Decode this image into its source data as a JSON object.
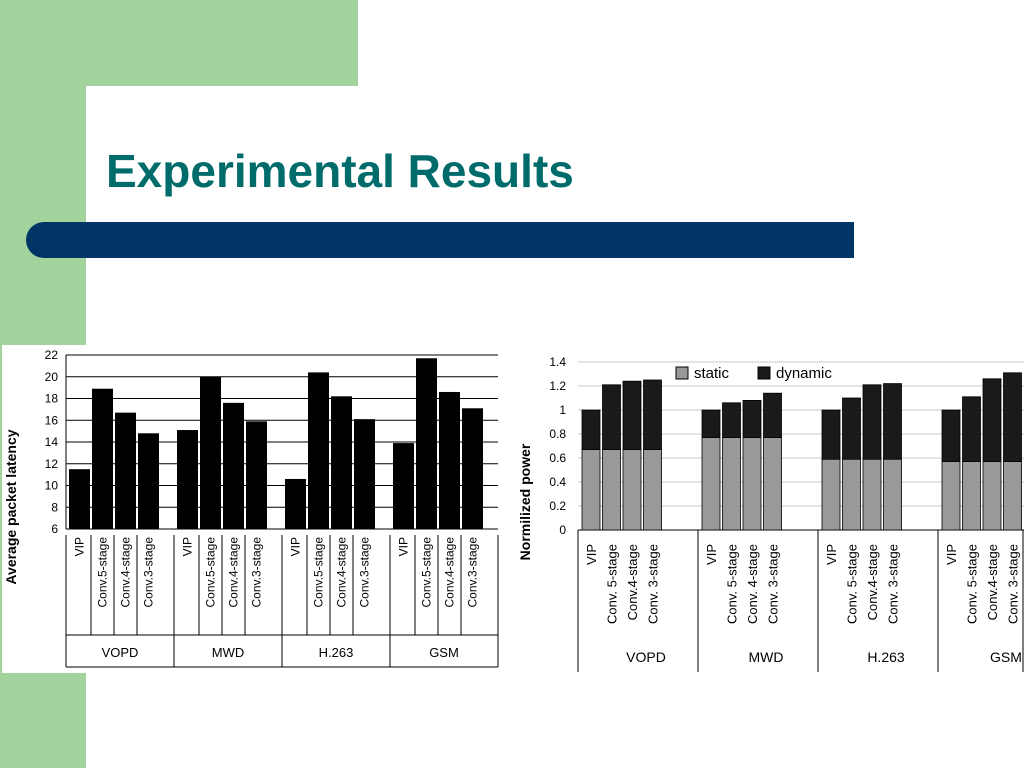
{
  "slide": {
    "title": "Experimental Results",
    "colors": {
      "side_band": "#a3d39c",
      "title_text": "#006b6b",
      "title_bar": "#003366"
    }
  },
  "chart_data": [
    {
      "type": "bar",
      "ylabel": "Average packet latency",
      "ylim": [
        6,
        22
      ],
      "yticks": [
        6,
        8,
        10,
        12,
        14,
        16,
        18,
        20,
        22
      ],
      "grid": true,
      "bar_color": "#000000",
      "groups": [
        {
          "name": "VOPD",
          "categories": [
            "VIP",
            "Conv.5-stage",
            "Conv.4-stage",
            "Conv.3-stage"
          ],
          "values": [
            11.5,
            18.9,
            16.7,
            14.8
          ]
        },
        {
          "name": "MWD",
          "categories": [
            "VIP",
            "Conv.5-stage",
            "Conv.4-stage",
            "Conv.3-stage"
          ],
          "values": [
            15.1,
            20.0,
            17.6,
            15.9
          ]
        },
        {
          "name": "H.263",
          "categories": [
            "VIP",
            "Conv.5-stage",
            "Conv.4-stage",
            "Conv.3-stage"
          ],
          "values": [
            10.6,
            20.4,
            18.2,
            16.1
          ]
        },
        {
          "name": "GSM",
          "categories": [
            "VIP",
            "Conv.5-stage",
            "Conv.4-stage",
            "Conv.3-stage"
          ],
          "values": [
            13.9,
            21.7,
            18.6,
            17.1
          ]
        }
      ]
    },
    {
      "type": "bar",
      "stacked": true,
      "ylabel": "Normilized power",
      "ylim": [
        0,
        1.4
      ],
      "yticks": [
        "0",
        "0.2",
        "0.4",
        "0.6",
        "0.8",
        "1",
        "1.2",
        "1.4"
      ],
      "grid": true,
      "legend": {
        "position": "top",
        "items": [
          {
            "label": "static",
            "color": "#999999"
          },
          {
            "label": "dynamic",
            "color": "#1a1a1a"
          }
        ]
      },
      "groups": [
        {
          "name": "VOPD",
          "categories": [
            "VIP",
            "Conv. 5-stage",
            "Conv.4-stage",
            "Conv. 3-stage"
          ],
          "static": [
            0.67,
            0.67,
            0.67,
            0.67
          ],
          "dynamic": [
            0.33,
            0.54,
            0.57,
            0.58
          ]
        },
        {
          "name": "MWD",
          "categories": [
            "VIP",
            "Conv. 5-stage",
            "Conv. 4-stage",
            "Conv. 3-stage"
          ],
          "static": [
            0.77,
            0.77,
            0.77,
            0.77
          ],
          "dynamic": [
            0.23,
            0.29,
            0.31,
            0.37
          ]
        },
        {
          "name": "H.263",
          "categories": [
            "VIP",
            "Conv. 5-stage",
            "Conv.4-stage",
            "Conv. 3-stage"
          ],
          "static": [
            0.59,
            0.59,
            0.59,
            0.59
          ],
          "dynamic": [
            0.41,
            0.51,
            0.62,
            0.63
          ]
        },
        {
          "name": "GSM",
          "categories": [
            "VIP",
            "Conv. 5-stage",
            "Conv.4-stage",
            "Conv. 3-stage"
          ],
          "static": [
            0.57,
            0.57,
            0.57,
            0.57
          ],
          "dynamic": [
            0.43,
            0.54,
            0.69,
            0.74
          ]
        }
      ]
    }
  ]
}
